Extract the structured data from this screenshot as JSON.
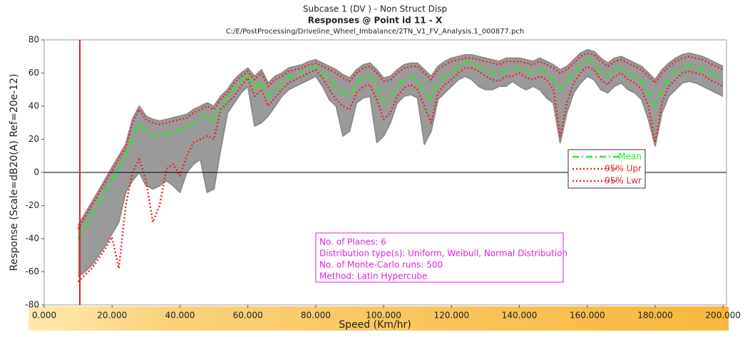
{
  "chart_data": {
    "type": "line",
    "title": "Subcase 1 (DV ) - Non Struct Disp",
    "subtitle": "Responses @ Point id 11 - X",
    "source": "C:/E/PostProcessing/Driveline_Wheel_Imbalance/2TN_V1_FV_Analysis.1_000877.pch",
    "x_label": "Speed (Km/hr)",
    "y_label": "Response (Scale=dB20(A) Ref=20e-12)",
    "xlim": [
      0,
      201
    ],
    "ylim": [
      -80,
      80
    ],
    "xticks": [
      {
        "value": 0,
        "label": "0.000"
      },
      {
        "value": 20,
        "label": "20.000"
      },
      {
        "value": 40,
        "label": "40.000"
      },
      {
        "value": 60,
        "label": "60.000"
      },
      {
        "value": 80,
        "label": "80.000"
      },
      {
        "value": 100,
        "label": "100.000"
      },
      {
        "value": 120,
        "label": "120.000"
      },
      {
        "value": 140,
        "label": "140.000"
      },
      {
        "value": 160,
        "label": "160.000"
      },
      {
        "value": 180,
        "label": "180.000"
      },
      {
        "value": 200,
        "label": "200.000"
      }
    ],
    "yticks": [
      -80,
      -60,
      -40,
      -20,
      0,
      20,
      40,
      60,
      80
    ],
    "hline": 0,
    "cursor_x": 10.5,
    "cursor_color": "#e02020",
    "band_fill": "#9a9a9a",
    "legend": "right",
    "x": [
      10,
      12,
      14,
      16,
      18,
      20,
      22,
      24,
      26,
      28,
      30,
      32,
      34,
      36,
      38,
      40,
      42,
      44,
      46,
      48,
      50,
      52,
      54,
      56,
      58,
      60,
      62,
      64,
      66,
      68,
      70,
      72,
      74,
      76,
      78,
      80,
      82,
      84,
      86,
      88,
      90,
      92,
      94,
      96,
      98,
      100,
      102,
      104,
      106,
      108,
      110,
      112,
      114,
      116,
      118,
      120,
      122,
      124,
      126,
      128,
      130,
      132,
      134,
      136,
      138,
      140,
      142,
      144,
      146,
      148,
      150,
      152,
      154,
      156,
      158,
      160,
      162,
      164,
      166,
      168,
      170,
      172,
      174,
      176,
      178,
      180,
      182,
      184,
      186,
      188,
      190,
      192,
      194,
      196,
      198,
      200
    ],
    "series": [
      {
        "color": "#8c8c8c",
        "style": "solid",
        "values": [
          -32,
          -25,
          -18,
          -11,
          -4,
          3,
          10,
          17,
          32,
          40,
          34,
          32,
          31,
          32,
          33,
          34,
          35,
          38,
          40,
          42,
          40,
          46,
          50,
          56,
          60,
          63,
          58,
          62,
          54,
          58,
          60,
          63,
          64,
          65,
          67,
          68,
          66,
          64,
          62,
          59,
          57,
          62,
          65,
          66,
          62,
          57,
          58,
          62,
          65,
          66,
          66,
          62,
          58,
          64,
          67,
          69,
          70,
          71,
          71,
          70,
          69,
          68,
          67,
          69,
          69,
          69,
          68,
          67,
          69,
          67,
          65,
          62,
          64,
          68,
          72,
          74,
          73,
          69,
          66,
          69,
          70,
          68,
          66,
          64,
          60,
          56,
          62,
          66,
          69,
          71,
          72,
          71,
          70,
          68,
          66,
          64
        ]
      },
      {
        "color": "#8c8c8c",
        "style": "solid",
        "values": [
          -63,
          -60,
          -56,
          -50,
          -44,
          -37,
          -30,
          -12,
          -5,
          0,
          -8,
          -10,
          -8,
          -5,
          -8,
          -12,
          0,
          5,
          8,
          -12,
          -10,
          14,
          36,
          42,
          48,
          52,
          28,
          30,
          34,
          40,
          46,
          50,
          52,
          54,
          56,
          58,
          52,
          44,
          40,
          22,
          25,
          42,
          45,
          46,
          18,
          22,
          30,
          42,
          46,
          47,
          45,
          17,
          25,
          44,
          48,
          52,
          56,
          58,
          56,
          52,
          50,
          50,
          52,
          52,
          55,
          52,
          50,
          52,
          50,
          45,
          42,
          18,
          36,
          48,
          54,
          58,
          56,
          50,
          48,
          52,
          54,
          50,
          48,
          44,
          32,
          16,
          36,
          46,
          50,
          54,
          55,
          54,
          52,
          50,
          48,
          46
        ]
      },
      {
        "name": "Mean",
        "color": "#22ee22",
        "style": "dashdot",
        "values": [
          -40,
          -33,
          -26,
          -19,
          -12,
          -5,
          2,
          9,
          20,
          30,
          24,
          22,
          22,
          23,
          24,
          26,
          27,
          30,
          33,
          35,
          30,
          40,
          45,
          50,
          55,
          59,
          50,
          55,
          45,
          50,
          53,
          57,
          58,
          60,
          62,
          64,
          60,
          56,
          52,
          48,
          46,
          54,
          57,
          58,
          52,
          42,
          45,
          52,
          56,
          58,
          56,
          48,
          45,
          54,
          58,
          60,
          63,
          66,
          66,
          64,
          62,
          60,
          59,
          62,
          62,
          63,
          61,
          60,
          62,
          60,
          56,
          50,
          54,
          60,
          64,
          68,
          66,
          60,
          58,
          62,
          63,
          60,
          58,
          55,
          48,
          40,
          50,
          56,
          60,
          63,
          64,
          63,
          62,
          60,
          58,
          56
        ]
      },
      {
        "name": "95% Upr",
        "color": "#ee2222",
        "style": "dotted",
        "values": [
          -34,
          -27,
          -20,
          -13,
          -6,
          1,
          8,
          15,
          30,
          38,
          32,
          30,
          29,
          30,
          31,
          32,
          33,
          36,
          38,
          40,
          38,
          44,
          48,
          54,
          58,
          61,
          56,
          60,
          52,
          56,
          58,
          61,
          62,
          63,
          65,
          66,
          64,
          62,
          60,
          57,
          55,
          60,
          63,
          64,
          60,
          55,
          56,
          60,
          63,
          64,
          64,
          60,
          56,
          62,
          65,
          67,
          68,
          69,
          69,
          68,
          67,
          66,
          65,
          67,
          67,
          67,
          66,
          65,
          67,
          65,
          63,
          60,
          62,
          66,
          70,
          72,
          71,
          67,
          64,
          67,
          68,
          66,
          64,
          62,
          58,
          54,
          60,
          64,
          67,
          69,
          70,
          69,
          68,
          66,
          64,
          62
        ]
      },
      {
        "name": "95% Lwr",
        "color": "#ee2222",
        "style": "dotted",
        "values": [
          -66,
          -62,
          -58,
          -52,
          -46,
          -39,
          -58,
          -20,
          0,
          8,
          -5,
          -30,
          -20,
          2,
          5,
          -2,
          10,
          18,
          20,
          22,
          20,
          38,
          42,
          46,
          52,
          57,
          46,
          50,
          40,
          45,
          50,
          54,
          56,
          58,
          60,
          62,
          57,
          50,
          44,
          40,
          38,
          48,
          52,
          53,
          44,
          32,
          36,
          46,
          51,
          53,
          50,
          40,
          30,
          48,
          53,
          56,
          60,
          63,
          63,
          61,
          58,
          56,
          55,
          58,
          58,
          60,
          57,
          56,
          58,
          56,
          50,
          22,
          42,
          54,
          60,
          64,
          62,
          56,
          53,
          58,
          60,
          56,
          54,
          50,
          40,
          18,
          42,
          52,
          56,
          60,
          61,
          60,
          59,
          56,
          54,
          52
        ]
      }
    ],
    "annotation": {
      "color": "#e020e0",
      "lines": [
        "No. of Planes:   6",
        "Distribution type(s): Uniform, Weibull, Normal Distribution",
        "No. of Monte-Carlo runs:    500",
        "Method: Latin Hypercube"
      ]
    }
  }
}
